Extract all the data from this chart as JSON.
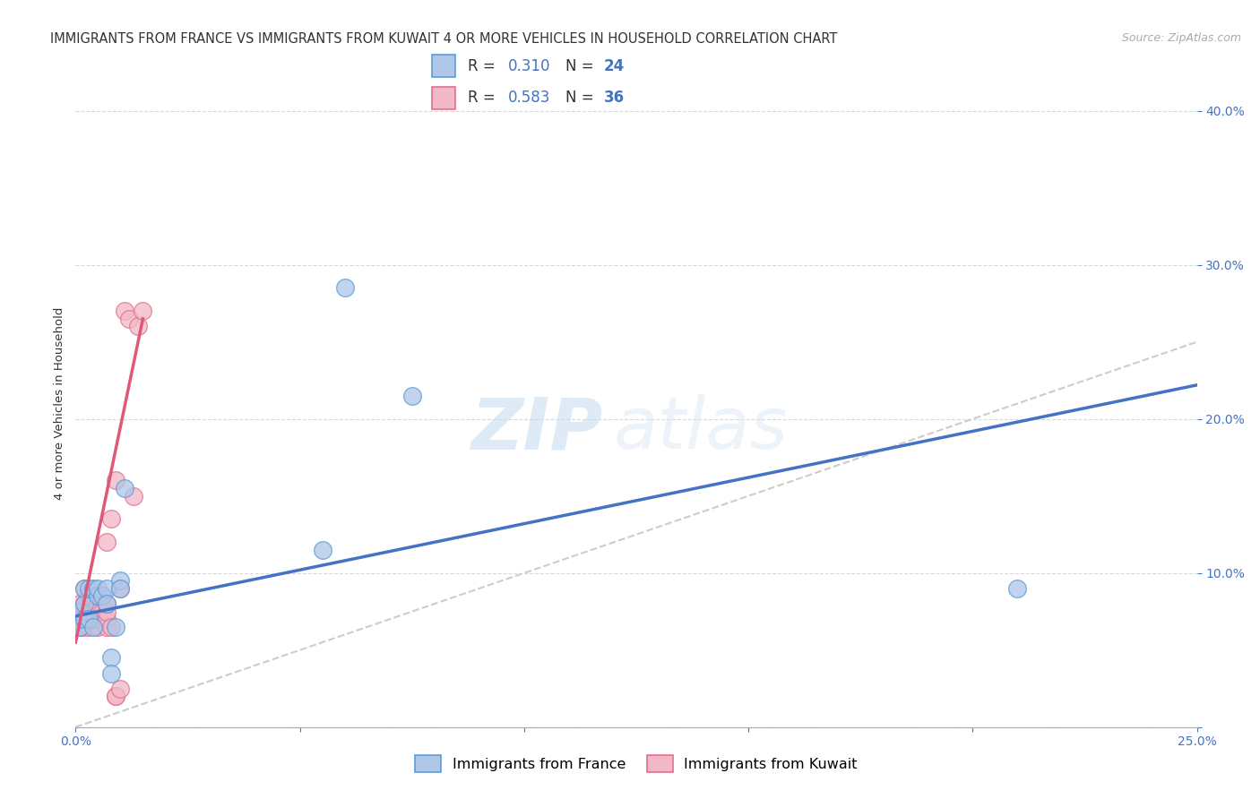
{
  "title": "IMMIGRANTS FROM FRANCE VS IMMIGRANTS FROM KUWAIT 4 OR MORE VEHICLES IN HOUSEHOLD CORRELATION CHART",
  "source": "Source: ZipAtlas.com",
  "ylabel": "4 or more Vehicles in Household",
  "xlim": [
    0.0,
    0.25
  ],
  "ylim": [
    0.0,
    0.42
  ],
  "xticks": [
    0.0,
    0.05,
    0.1,
    0.15,
    0.2,
    0.25
  ],
  "yticks": [
    0.0,
    0.1,
    0.2,
    0.3,
    0.4
  ],
  "xticklabels": [
    "0.0%",
    "",
    "",
    "",
    "",
    "25.0%"
  ],
  "yticklabels": [
    "",
    "10.0%",
    "20.0%",
    "30.0%",
    "40.0%"
  ],
  "france_R": 0.31,
  "france_N": 24,
  "kuwait_R": 0.583,
  "kuwait_N": 36,
  "france_color": "#aec6e8",
  "kuwait_color": "#f2b8c6",
  "france_edge_color": "#5b9bd5",
  "kuwait_edge_color": "#e07090",
  "france_line_color": "#4472c4",
  "kuwait_line_color": "#e05878",
  "background_color": "#ffffff",
  "grid_color": "#d8d8d8",
  "france_x": [
    0.001,
    0.001,
    0.002,
    0.002,
    0.002,
    0.003,
    0.003,
    0.004,
    0.004,
    0.005,
    0.005,
    0.006,
    0.007,
    0.007,
    0.008,
    0.008,
    0.009,
    0.01,
    0.01,
    0.011,
    0.055,
    0.06,
    0.075,
    0.21
  ],
  "france_y": [
    0.065,
    0.075,
    0.07,
    0.08,
    0.09,
    0.07,
    0.09,
    0.065,
    0.09,
    0.085,
    0.09,
    0.085,
    0.09,
    0.08,
    0.045,
    0.035,
    0.065,
    0.095,
    0.09,
    0.155,
    0.115,
    0.285,
    0.215,
    0.09
  ],
  "kuwait_x": [
    0.001,
    0.001,
    0.001,
    0.002,
    0.002,
    0.002,
    0.002,
    0.003,
    0.003,
    0.003,
    0.004,
    0.004,
    0.004,
    0.005,
    0.005,
    0.005,
    0.005,
    0.006,
    0.006,
    0.007,
    0.007,
    0.007,
    0.007,
    0.007,
    0.008,
    0.008,
    0.009,
    0.009,
    0.009,
    0.01,
    0.01,
    0.011,
    0.012,
    0.013,
    0.014,
    0.015
  ],
  "kuwait_y": [
    0.065,
    0.07,
    0.08,
    0.065,
    0.07,
    0.08,
    0.09,
    0.065,
    0.075,
    0.085,
    0.07,
    0.075,
    0.085,
    0.065,
    0.07,
    0.08,
    0.085,
    0.075,
    0.085,
    0.065,
    0.07,
    0.075,
    0.08,
    0.12,
    0.065,
    0.135,
    0.02,
    0.02,
    0.16,
    0.025,
    0.09,
    0.27,
    0.265,
    0.15,
    0.26,
    0.27
  ],
  "legend_france_label": "Immigrants from France",
  "legend_kuwait_label": "Immigrants from Kuwait",
  "watermark_zip": "ZIP",
  "watermark_atlas": "atlas",
  "title_fontsize": 10.5,
  "axis_label_fontsize": 9.5,
  "tick_fontsize": 10,
  "legend_fontsize": 11,
  "france_trend_x": [
    0.0,
    0.25
  ],
  "france_trend_y": [
    0.072,
    0.222
  ],
  "kuwait_trend_x": [
    0.0,
    0.015
  ],
  "kuwait_trend_y": [
    0.055,
    0.265
  ]
}
